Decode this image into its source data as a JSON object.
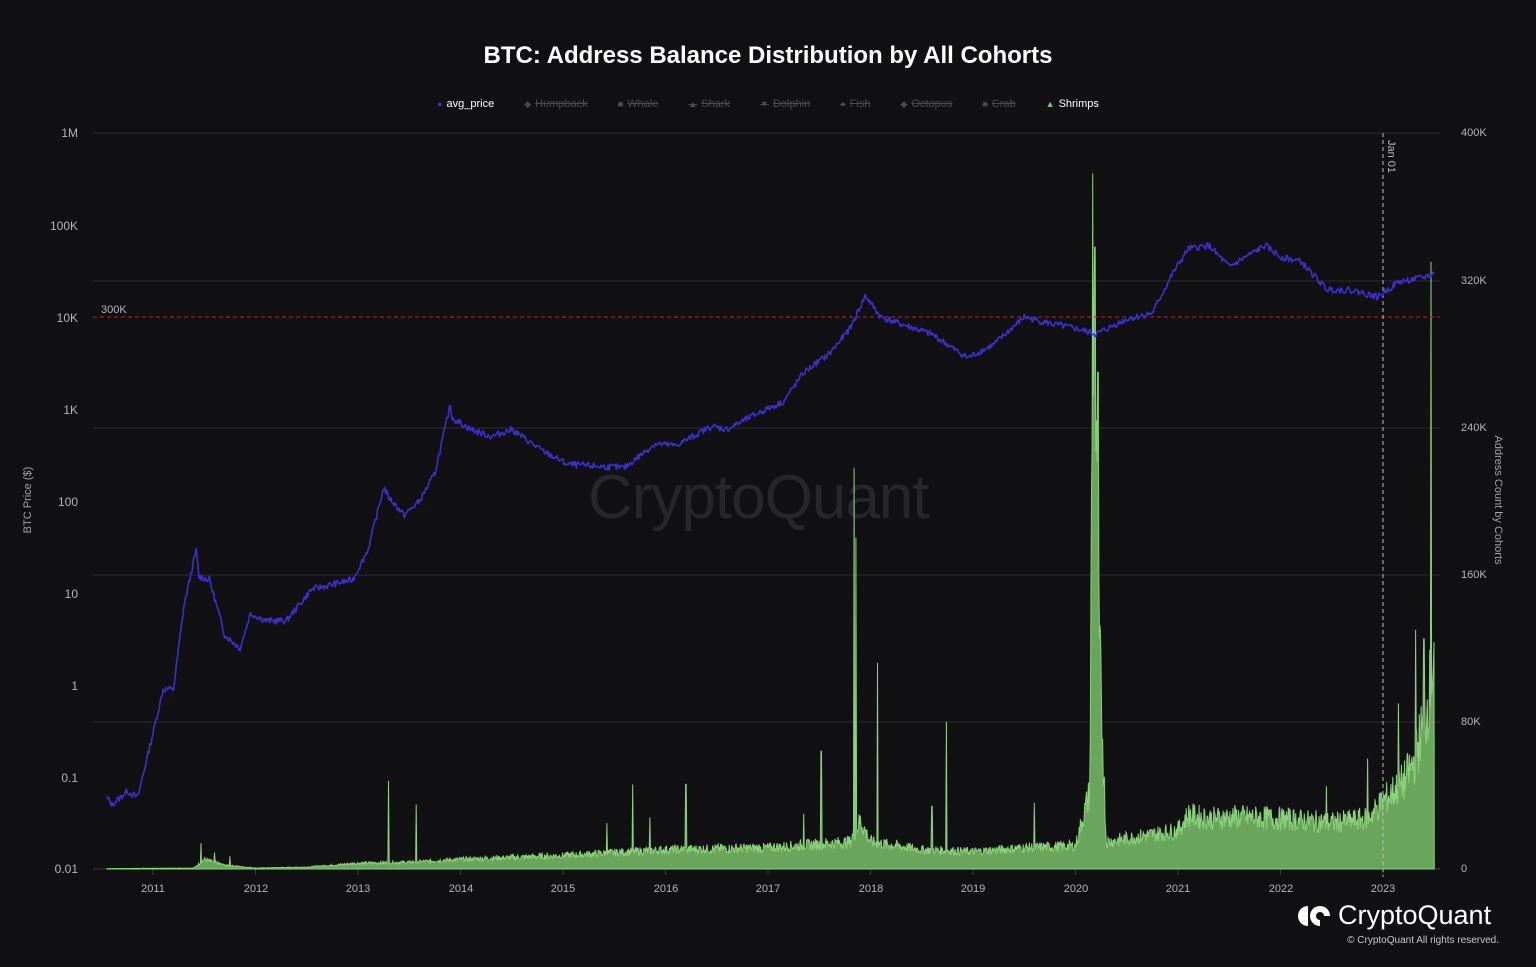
{
  "header": {
    "title": "BTC: Address Balance Distribution by All Cohorts"
  },
  "legend": [
    {
      "label": "avg_price",
      "marker": "●",
      "color": "#3d2ec9",
      "active": true
    },
    {
      "label": "Humpback",
      "marker": "◆",
      "color": "#4a4a50",
      "active": false
    },
    {
      "label": "Whale",
      "marker": "■",
      "color": "#4a4a50",
      "active": false
    },
    {
      "label": "Shark",
      "marker": "▲",
      "color": "#4a4a50",
      "active": false
    },
    {
      "label": "Dolphin",
      "marker": "▼",
      "color": "#4a4a50",
      "active": false
    },
    {
      "label": "Fish",
      "marker": "●",
      "color": "#4a4a50",
      "active": false
    },
    {
      "label": "Octopus",
      "marker": "◆",
      "color": "#4a4a50",
      "active": false
    },
    {
      "label": "Crab",
      "marker": "■",
      "color": "#4a4a50",
      "active": false
    },
    {
      "label": "Shrimps",
      "marker": "▲",
      "color": "#7cc46c",
      "active": true
    }
  ],
  "axes": {
    "left_title": "BTC Price ($)",
    "right_title": "Address Count by Cohorts",
    "left_ticks": [
      "1M",
      "100K",
      "10K",
      "1K",
      "100",
      "10",
      "1",
      "0.1",
      "0.01"
    ],
    "right_ticks": [
      "400K",
      "320K",
      "240K",
      "160K",
      "80K",
      "0"
    ],
    "x_ticks": [
      "2011",
      "2012",
      "2013",
      "2014",
      "2015",
      "2016",
      "2017",
      "2018",
      "2019",
      "2020",
      "2021",
      "2022",
      "2023"
    ]
  },
  "annotations": {
    "threshold_label": "300K",
    "marker_label": "Jan 01"
  },
  "watermark": "CryptoQuant",
  "footer": {
    "brand": "CryptoQuant",
    "copyright": "© CryptoQuant All rights reserved."
  },
  "colors": {
    "background": "#111114",
    "price_line": "#3d2ec9",
    "shrimps_fill": "#6fae5f",
    "shrimps_line": "#8bd07a",
    "threshold_line": "#b3262e",
    "grid": "#2c2c31"
  },
  "chart_data": {
    "type": "line+area",
    "title": "BTC: Address Balance Distribution by All Cohorts",
    "xlabel": "",
    "ylabel_left": "BTC Price ($)",
    "ylabel_right": "Address Count by Cohorts",
    "y_left_scale": "log",
    "y_left_range": [
      0.01,
      1000000
    ],
    "y_right_range": [
      0,
      400000
    ],
    "grid": true,
    "legend_position": "top",
    "annotations": [
      {
        "type": "hline",
        "axis": "right",
        "value": 300000,
        "label": "300K",
        "style": "dashed red"
      },
      {
        "type": "vline",
        "x": "2023-01-01",
        "label": "Jan 01",
        "style": "dashed white"
      }
    ],
    "series": [
      {
        "name": "avg_price",
        "axis": "left",
        "color": "#3d2ec9",
        "x": [
          2010.55,
          2010.6,
          2010.75,
          2010.85,
          2011.0,
          2011.1,
          2011.2,
          2011.3,
          2011.42,
          2011.45,
          2011.55,
          2011.7,
          2011.85,
          2011.95,
          2012.1,
          2012.3,
          2012.55,
          2012.7,
          2012.95,
          2013.1,
          2013.25,
          2013.3,
          2013.45,
          2013.6,
          2013.75,
          2013.9,
          2013.92,
          2014.1,
          2014.3,
          2014.5,
          2014.8,
          2015.05,
          2015.3,
          2015.6,
          2015.9,
          2016.1,
          2016.45,
          2016.6,
          2016.9,
          2017.15,
          2017.35,
          2017.6,
          2017.8,
          2017.95,
          2018.1,
          2018.35,
          2018.6,
          2018.88,
          2018.95,
          2019.2,
          2019.5,
          2019.75,
          2020.0,
          2020.2,
          2020.5,
          2020.75,
          2020.95,
          2021.1,
          2021.3,
          2021.5,
          2021.85,
          2022.0,
          2022.2,
          2022.45,
          2022.7,
          2022.95,
          2023.15,
          2023.4,
          2023.5
        ],
        "values": [
          0.06,
          0.05,
          0.07,
          0.06,
          0.3,
          0.9,
          0.9,
          7,
          29,
          15,
          14,
          3.5,
          2.5,
          6,
          5,
          5,
          11,
          12,
          14,
          30,
          140,
          110,
          70,
          100,
          200,
          1100,
          800,
          600,
          500,
          600,
          350,
          250,
          240,
          230,
          420,
          400,
          650,
          600,
          900,
          1200,
          2500,
          4000,
          7500,
          17000,
          10000,
          8000,
          6500,
          4000,
          3600,
          5000,
          10000,
          8500,
          7500,
          6500,
          9500,
          11000,
          30000,
          55000,
          60000,
          35000,
          60000,
          45000,
          40000,
          20000,
          19500,
          16500,
          24000,
          27000,
          30000
        ]
      },
      {
        "name": "Shrimps",
        "axis": "right",
        "color": "#7cc46c",
        "type": "area",
        "x": [
          2010.55,
          2011.0,
          2011.45,
          2011.55,
          2011.7,
          2012.0,
          2012.5,
          2013.0,
          2013.3,
          2013.6,
          2014.0,
          2014.5,
          2015.0,
          2015.7,
          2016.0,
          2016.2,
          2017.0,
          2017.5,
          2017.85,
          2017.95,
          2018.1,
          2018.75,
          2019.0,
          2019.5,
          2020.0,
          2020.15,
          2020.18,
          2020.3,
          2020.5,
          2021.0,
          2021.1,
          2021.3,
          2021.6,
          2022.0,
          2022.5,
          2022.85,
          2023.0,
          2023.2,
          2023.35,
          2023.45,
          2023.5
        ],
        "values": [
          200,
          500,
          8000,
          4000,
          3000,
          800,
          1500,
          4500,
          20000,
          6000,
          6000,
          7000,
          8000,
          12000,
          18000,
          45000,
          12000,
          15000,
          180000,
          20000,
          112000,
          80000,
          10000,
          13000,
          15000,
          50000,
          378000,
          70000,
          20000,
          24000,
          30000,
          27000,
          30000,
          28000,
          25000,
          30000,
          40000,
          60000,
          130000,
          130000,
          330000
        ]
      }
    ]
  }
}
